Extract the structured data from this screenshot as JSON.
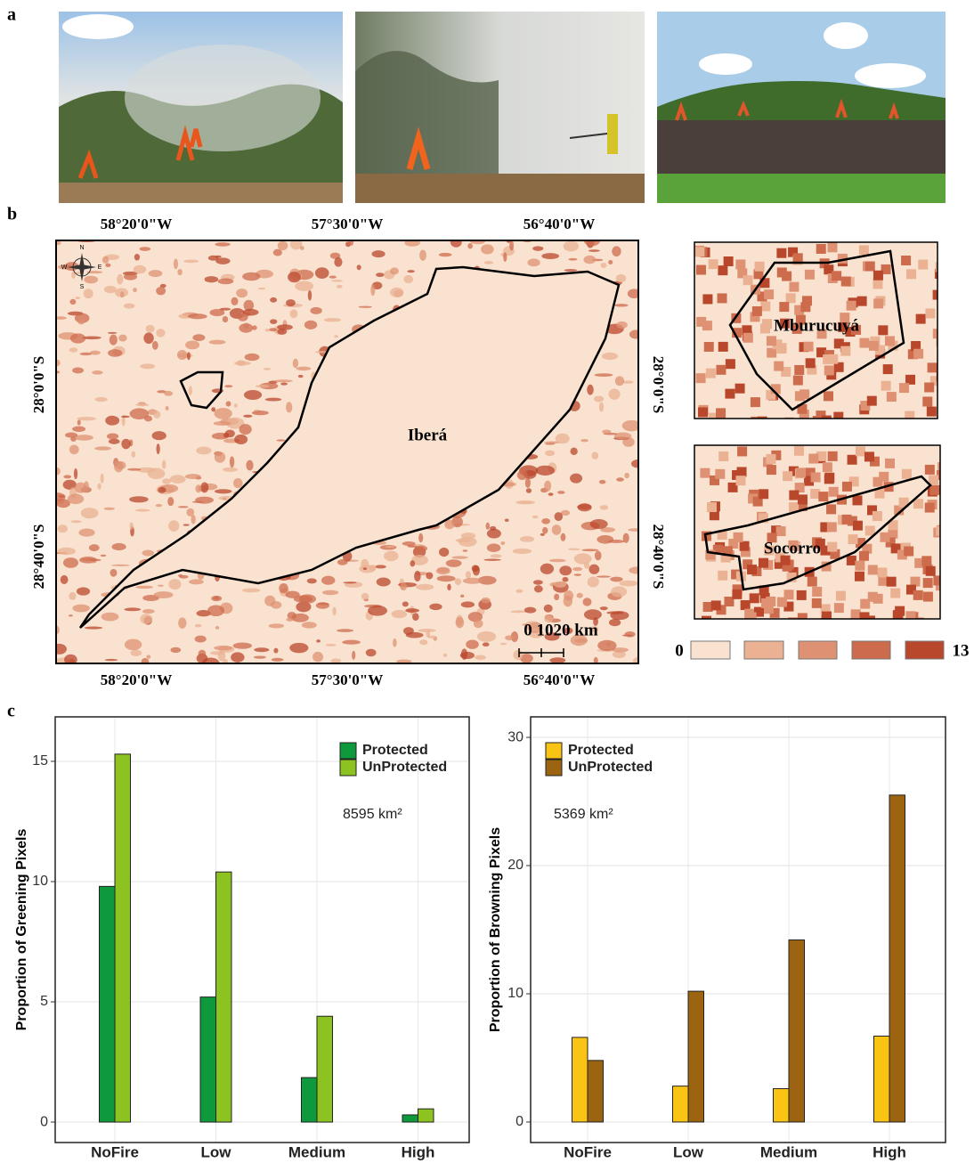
{
  "panel_labels": [
    "a",
    "b",
    "c"
  ],
  "map": {
    "top_labels": [
      "58°20'0\"W",
      "57°30'0\"W",
      "56°40'0\"W"
    ],
    "bottom_labels": [
      "58°20'0\"W",
      "57°30'0\"W",
      "56°40'0\"W"
    ],
    "left_labels": [
      "28°0'0\"S",
      "28°40'0\"S"
    ],
    "right_labels": [
      "28°0'0\"S",
      "28°40'0\"S"
    ],
    "compass": [
      "N",
      "E",
      "S",
      "W"
    ],
    "region_labels": [
      "Iberá",
      "Mburucuyá",
      "Socorro"
    ],
    "scale_label": "0 1020 km",
    "legend_range": [
      0,
      13
    ]
  },
  "chart_data": [
    {
      "type": "bar",
      "y_label": "Proportion of Greening Pixels",
      "annotation": "8595 km²",
      "categories": [
        "NoFire",
        "Low",
        "Medium",
        "High"
      ],
      "series": [
        {
          "name": "Protected",
          "color": "#0e9a3c",
          "values": [
            9.8,
            5.2,
            1.85,
            0.3
          ]
        },
        {
          "name": "UnProtected",
          "color": "#8cc320",
          "values": [
            15.3,
            10.4,
            4.4,
            0.55
          ]
        }
      ],
      "ylim": [
        -0.85,
        16.85
      ],
      "yticks": [
        0,
        5,
        10,
        15
      ],
      "grid": true,
      "legend": "top-right"
    },
    {
      "type": "bar",
      "y_label": "Proportion of Browning Pixels",
      "annotation": "5369 km²",
      "categories": [
        "NoFire",
        "Low",
        "Medium",
        "High"
      ],
      "series": [
        {
          "name": "Protected",
          "color": "#f9c414",
          "values": [
            6.6,
            2.8,
            2.6,
            6.7
          ]
        },
        {
          "name": "UnProtected",
          "color": "#9c6410",
          "values": [
            4.8,
            10.2,
            14.2,
            25.5
          ]
        }
      ],
      "ylim": [
        -1.6,
        31.6
      ],
      "yticks": [
        0,
        10,
        20,
        30
      ],
      "grid": true,
      "legend": "top-left"
    }
  ]
}
